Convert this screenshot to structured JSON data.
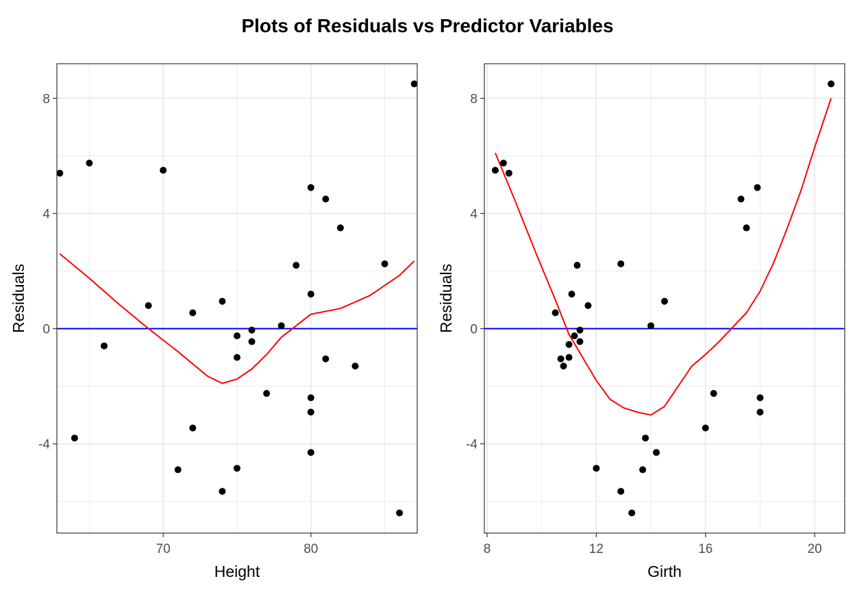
{
  "title": "Plots of Residuals vs Predictor Variables",
  "colors": {
    "points": "#000000",
    "smooth": "#ff0000",
    "zero_line": "#0000ff",
    "grid": "#ebebeb",
    "border": "#333333"
  },
  "chart_data": [
    {
      "type": "scatter",
      "xlabel": "Height",
      "ylabel": "Residuals",
      "xlim": [
        62.8,
        87.2
      ],
      "ylim": [
        -7.1,
        9.2
      ],
      "x_ticks": [
        70,
        80
      ],
      "x_tick_labels": [
        "70",
        "80"
      ],
      "y_ticks": [
        -4,
        0,
        4,
        8
      ],
      "y_tick_labels": [
        "-4",
        "0",
        "4",
        "8"
      ],
      "grid": true,
      "hline": 0,
      "points": [
        {
          "x": 63,
          "y": 5.4
        },
        {
          "x": 64,
          "y": -3.8
        },
        {
          "x": 65,
          "y": 5.75
        },
        {
          "x": 66,
          "y": -0.6
        },
        {
          "x": 69,
          "y": 0.8
        },
        {
          "x": 70,
          "y": 5.5
        },
        {
          "x": 71,
          "y": -4.9
        },
        {
          "x": 72,
          "y": 0.55
        },
        {
          "x": 72,
          "y": -3.45
        },
        {
          "x": 74,
          "y": 0.95
        },
        {
          "x": 74,
          "y": -5.65
        },
        {
          "x": 75,
          "y": -0.25
        },
        {
          "x": 75,
          "y": -1.0
        },
        {
          "x": 75,
          "y": -4.85
        },
        {
          "x": 76,
          "y": -0.05
        },
        {
          "x": 76,
          "y": -0.45
        },
        {
          "x": 77,
          "y": -2.25
        },
        {
          "x": 78,
          "y": 0.1
        },
        {
          "x": 79,
          "y": 2.2
        },
        {
          "x": 80,
          "y": 4.9
        },
        {
          "x": 80,
          "y": 1.2
        },
        {
          "x": 80,
          "y": -2.4
        },
        {
          "x": 80,
          "y": -2.9
        },
        {
          "x": 80,
          "y": -4.3
        },
        {
          "x": 81,
          "y": 4.5
        },
        {
          "x": 81,
          "y": -1.05
        },
        {
          "x": 82,
          "y": 3.5
        },
        {
          "x": 83,
          "y": -1.3
        },
        {
          "x": 85,
          "y": 2.25
        },
        {
          "x": 86,
          "y": -6.4
        },
        {
          "x": 87,
          "y": 8.5
        }
      ],
      "smooth": [
        {
          "x": 63,
          "y": 2.6
        },
        {
          "x": 65,
          "y": 1.75
        },
        {
          "x": 67,
          "y": 0.85
        },
        {
          "x": 69,
          "y": 0.0
        },
        {
          "x": 71,
          "y": -0.8
        },
        {
          "x": 73,
          "y": -1.65
        },
        {
          "x": 74,
          "y": -1.9
        },
        {
          "x": 75,
          "y": -1.75
        },
        {
          "x": 76,
          "y": -1.4
        },
        {
          "x": 77,
          "y": -0.9
        },
        {
          "x": 78,
          "y": -0.3
        },
        {
          "x": 79,
          "y": 0.1
        },
        {
          "x": 80,
          "y": 0.5
        },
        {
          "x": 82,
          "y": 0.7
        },
        {
          "x": 84,
          "y": 1.15
        },
        {
          "x": 86,
          "y": 1.85
        },
        {
          "x": 87,
          "y": 2.35
        }
      ]
    },
    {
      "type": "scatter",
      "xlabel": "Girth",
      "ylabel": "Residuals",
      "xlim": [
        7.9,
        21.1
      ],
      "ylim": [
        -7.1,
        9.2
      ],
      "x_ticks": [
        8,
        12,
        16,
        20
      ],
      "x_tick_labels": [
        "8",
        "12",
        "16",
        "20"
      ],
      "y_ticks": [
        -4,
        0,
        4,
        8
      ],
      "y_tick_labels": [
        "-4",
        "0",
        "4",
        "8"
      ],
      "grid": true,
      "hline": 0,
      "points": [
        {
          "x": 8.3,
          "y": 5.5
        },
        {
          "x": 8.6,
          "y": 5.75
        },
        {
          "x": 8.8,
          "y": 5.4
        },
        {
          "x": 10.5,
          "y": 0.55
        },
        {
          "x": 10.7,
          "y": -1.05
        },
        {
          "x": 10.8,
          "y": -1.3
        },
        {
          "x": 11.0,
          "y": -1.0
        },
        {
          "x": 11.0,
          "y": -0.55
        },
        {
          "x": 11.1,
          "y": 1.2
        },
        {
          "x": 11.2,
          "y": -0.25
        },
        {
          "x": 11.3,
          "y": 2.2
        },
        {
          "x": 11.4,
          "y": -0.45
        },
        {
          "x": 11.4,
          "y": -0.05
        },
        {
          "x": 11.7,
          "y": 0.8
        },
        {
          "x": 12.0,
          "y": -4.85
        },
        {
          "x": 12.9,
          "y": 2.25
        },
        {
          "x": 12.9,
          "y": -5.65
        },
        {
          "x": 13.3,
          "y": -6.4
        },
        {
          "x": 13.7,
          "y": -4.9
        },
        {
          "x": 13.8,
          "y": -3.8
        },
        {
          "x": 14.0,
          "y": 0.1
        },
        {
          "x": 14.2,
          "y": -4.3
        },
        {
          "x": 14.5,
          "y": 0.95
        },
        {
          "x": 16.0,
          "y": -3.45
        },
        {
          "x": 16.3,
          "y": -2.25
        },
        {
          "x": 17.3,
          "y": 4.5
        },
        {
          "x": 17.5,
          "y": 3.5
        },
        {
          "x": 17.9,
          "y": 4.9
        },
        {
          "x": 18.0,
          "y": -2.4
        },
        {
          "x": 18.0,
          "y": -2.9
        },
        {
          "x": 20.6,
          "y": 8.5
        }
      ],
      "smooth": [
        {
          "x": 8.3,
          "y": 6.1
        },
        {
          "x": 9.0,
          "y": 4.5
        },
        {
          "x": 9.8,
          "y": 2.6
        },
        {
          "x": 10.5,
          "y": 1.0
        },
        {
          "x": 11.0,
          "y": -0.2
        },
        {
          "x": 11.5,
          "y": -1.0
        },
        {
          "x": 12.0,
          "y": -1.8
        },
        {
          "x": 12.5,
          "y": -2.45
        },
        {
          "x": 13.0,
          "y": -2.75
        },
        {
          "x": 13.5,
          "y": -2.9
        },
        {
          "x": 14.0,
          "y": -3.0
        },
        {
          "x": 14.5,
          "y": -2.7
        },
        {
          "x": 15.0,
          "y": -2.0
        },
        {
          "x": 15.5,
          "y": -1.3
        },
        {
          "x": 16.0,
          "y": -0.9
        },
        {
          "x": 16.5,
          "y": -0.45
        },
        {
          "x": 17.0,
          "y": 0.05
        },
        {
          "x": 17.5,
          "y": 0.55
        },
        {
          "x": 18.0,
          "y": 1.3
        },
        {
          "x": 18.5,
          "y": 2.3
        },
        {
          "x": 19.0,
          "y": 3.5
        },
        {
          "x": 19.5,
          "y": 4.8
        },
        {
          "x": 20.0,
          "y": 6.3
        },
        {
          "x": 20.6,
          "y": 8.0
        }
      ]
    }
  ]
}
